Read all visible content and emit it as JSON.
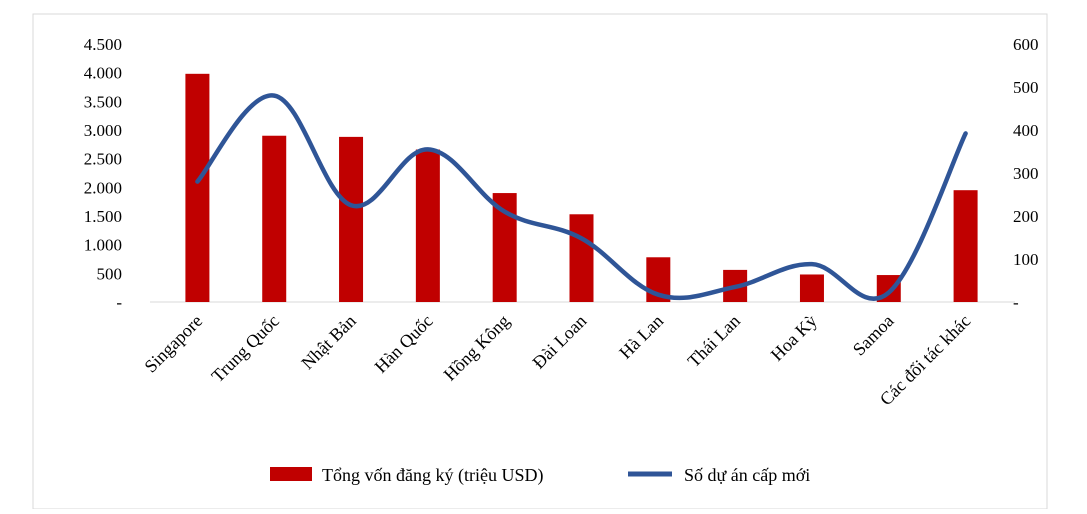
{
  "chart_data": {
    "type": "bar+line",
    "title": "",
    "categories": [
      "Singapore",
      "Trung Quốc",
      "Nhật Bản",
      "Hàn Quốc",
      "Hồng Kông",
      "Đài Loan",
      "Hà Lan",
      "Thái Lan",
      "Hoa Kỳ",
      "Samoa",
      "Các đối tác khác"
    ],
    "series": [
      {
        "name": "Tổng vốn đăng ký (triệu USD)",
        "kind": "bar",
        "axis": "left",
        "color": "#c00000",
        "values": [
          3980,
          2900,
          2880,
          2660,
          1900,
          1530,
          780,
          560,
          480,
          470,
          1950
        ]
      },
      {
        "name": "Số dự án cấp mới",
        "kind": "line",
        "axis": "right",
        "color": "#2f5597",
        "values": [
          280,
          480,
          225,
          355,
          210,
          148,
          17,
          35,
          88,
          22,
          392
        ]
      }
    ],
    "left_axis": {
      "min": 0,
      "max": 4500,
      "ticks": [
        0,
        500,
        1000,
        1500,
        2000,
        2500,
        3000,
        3500,
        4000,
        4500
      ],
      "tick_labels": [
        "-",
        "500",
        "1.000",
        "1.500",
        "2.000",
        "2.500",
        "3.000",
        "3.500",
        "4.000",
        "4.500"
      ]
    },
    "right_axis": {
      "min": 0,
      "max": 600,
      "ticks": [
        0,
        100,
        200,
        300,
        400,
        500,
        600
      ],
      "tick_labels": [
        "-",
        "100",
        "200",
        "300",
        "400",
        "500",
        "600"
      ]
    },
    "grid": false,
    "legend_position": "bottom"
  }
}
